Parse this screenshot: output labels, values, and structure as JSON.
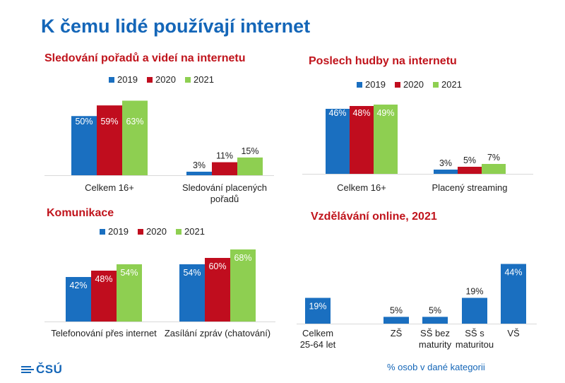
{
  "page": {
    "title": "K čemu lidé používají internet",
    "footer_note": "% osob v dané kategorii",
    "logo_text": "ČSÚ"
  },
  "colors": {
    "title": "#1466b8",
    "panel_title": "#c0141c",
    "s2019": "#1a6fc0",
    "s2020": "#c00d1e",
    "s2021": "#8ecf51"
  },
  "chart_data": [
    {
      "type": "bar",
      "title": "Sledování pořadů a videí na internetu",
      "categories": [
        [
          "Celkem 16+"
        ],
        [
          "Sledování placených",
          "pořadů"
        ]
      ],
      "series": [
        {
          "name": "2019",
          "values": [
            50,
            3
          ],
          "labels": [
            "50%",
            "3%"
          ]
        },
        {
          "name": "2020",
          "values": [
            59,
            11
          ],
          "labels": [
            "59%",
            "11%"
          ]
        },
        {
          "name": "2021",
          "values": [
            63,
            15
          ],
          "labels": [
            "63%",
            "15%"
          ]
        }
      ],
      "ylim": [
        0,
        68
      ],
      "legend": "top"
    },
    {
      "type": "bar",
      "title": "Poslech hudby na internetu",
      "categories": [
        [
          "Celkem 16+"
        ],
        [
          "Placený streaming"
        ]
      ],
      "series": [
        {
          "name": "2019",
          "values": [
            46,
            3
          ],
          "labels": [
            "46%",
            "3%"
          ]
        },
        {
          "name": "2020",
          "values": [
            48,
            5
          ],
          "labels": [
            "48%",
            "5%"
          ]
        },
        {
          "name": "2021",
          "values": [
            49,
            7
          ],
          "labels": [
            "49%",
            "7%"
          ]
        }
      ],
      "ylim": [
        0,
        50
      ],
      "legend": "top"
    },
    {
      "type": "bar",
      "title": "Komunikace",
      "categories": [
        [
          "Telefonování přes internet"
        ],
        [
          "Zasílání zpráv (chatování)"
        ]
      ],
      "series": [
        {
          "name": "2019",
          "values": [
            42,
            54
          ],
          "labels": [
            "42%",
            "54%"
          ]
        },
        {
          "name": "2020",
          "values": [
            48,
            60
          ],
          "labels": [
            "48%",
            "60%"
          ]
        },
        {
          "name": "2021",
          "values": [
            54,
            68
          ],
          "labels": [
            "54%",
            "68%"
          ]
        }
      ],
      "ylim": [
        0,
        75
      ],
      "legend": "top"
    },
    {
      "type": "bar",
      "title": "Vzdělávání online, 2021",
      "categories": [
        [
          "Celkem",
          "25-64 let"
        ],
        [
          "ZŠ"
        ],
        [
          "SŠ bez",
          "maturity"
        ],
        [
          "SŠ s",
          "maturitou"
        ],
        [
          "VŠ"
        ]
      ],
      "series": [
        {
          "values": [
            19,
            5,
            5,
            19,
            44
          ],
          "labels": [
            "19%",
            "5%",
            "5%",
            "19%",
            "44%"
          ]
        }
      ],
      "ylim": [
        0,
        48
      ]
    }
  ]
}
